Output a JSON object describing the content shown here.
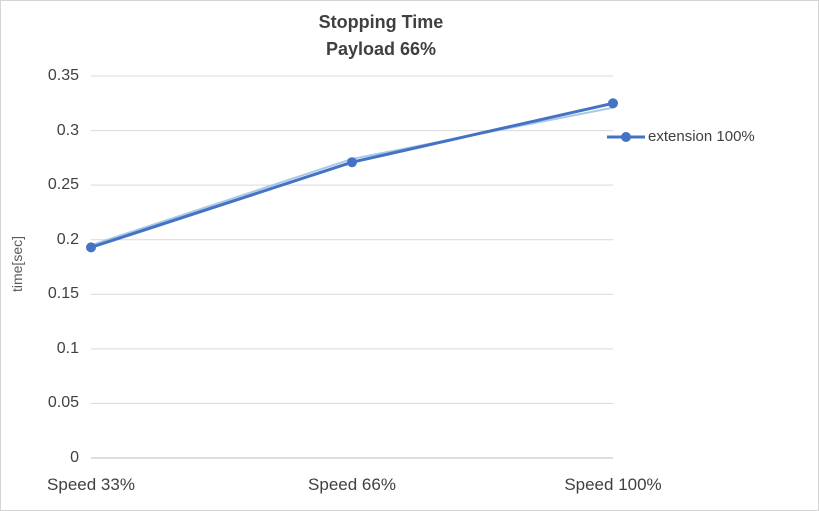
{
  "chart_data": {
    "type": "line",
    "title": "Stopping Time",
    "subtitle": "Payload 66%",
    "ylabel": "time[sec]",
    "xlabel": "",
    "categories": [
      "Speed 33%",
      "Speed 66%",
      "Speed 100%"
    ],
    "series": [
      {
        "name": "extension 100%",
        "values": [
          0.193,
          0.271,
          0.325
        ],
        "color": "#4472C4"
      }
    ],
    "unlabeled_light_line": {
      "values": [
        0.195,
        0.274,
        0.321
      ],
      "color": "#9DC3E6"
    },
    "ylim": [
      0,
      0.35
    ],
    "yticks": [
      0,
      0.05,
      0.1,
      0.15,
      0.2,
      0.25,
      0.3,
      0.35
    ],
    "ytick_labels": [
      "0",
      "0.05",
      "0.1",
      "0.15",
      "0.2",
      "0.25",
      "0.3",
      "0.35"
    ],
    "grid": true,
    "legend_position": "right",
    "colors": {
      "grid": "#d9d9d9",
      "axis": "#bfbfbf",
      "text": "#404040",
      "border": "#d4d4d4",
      "background": "#ffffff"
    }
  }
}
